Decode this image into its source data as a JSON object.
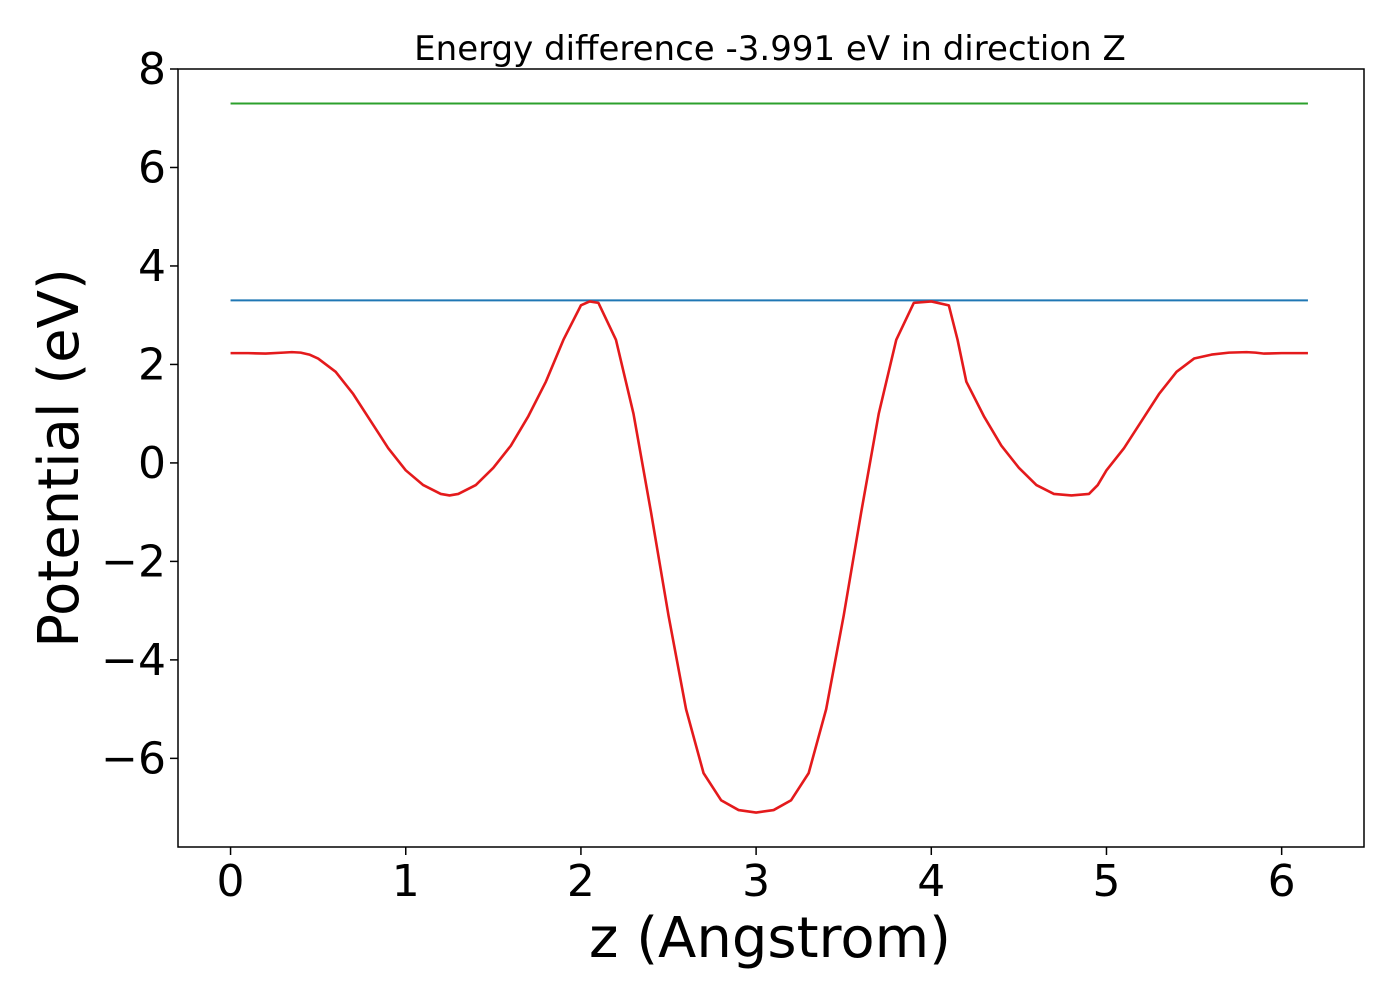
{
  "chart_data": {
    "type": "line",
    "title": "Energy difference -3.991 eV in direction Z",
    "xlabel": "z (Angstrom)",
    "ylabel": "Potential (eV)",
    "xlim": [
      -0.3,
      6.47
    ],
    "ylim": [
      -7.8,
      8.0
    ],
    "xticks": [
      0,
      1,
      2,
      3,
      4,
      5,
      6
    ],
    "xtick_labels": [
      "0",
      "1",
      "2",
      "3",
      "4",
      "5",
      "6"
    ],
    "yticks": [
      -6,
      -4,
      -2,
      0,
      2,
      4,
      6,
      8
    ],
    "ytick_labels": [
      "−6",
      "−4",
      "−2",
      "0",
      "2",
      "4",
      "6",
      "8"
    ],
    "grid": false,
    "legend": "none",
    "series": [
      {
        "color": "#2ca02c",
        "x": [
          0,
          6.15
        ],
        "y": [
          7.3,
          7.3
        ]
      },
      {
        "color": "#1f77b4",
        "x": [
          0,
          6.15
        ],
        "y": [
          3.3,
          3.3
        ]
      },
      {
        "color": "#e41a1c",
        "x": [
          0.0,
          0.1,
          0.2,
          0.3,
          0.35,
          0.4,
          0.45,
          0.5,
          0.6,
          0.7,
          0.8,
          0.9,
          1.0,
          1.1,
          1.2,
          1.25,
          1.3,
          1.4,
          1.5,
          1.6,
          1.7,
          1.8,
          1.9,
          2.0,
          2.05,
          2.1,
          2.2,
          2.3,
          2.4,
          2.5,
          2.6,
          2.7,
          2.8,
          2.9,
          3.0,
          3.1,
          3.2,
          3.3,
          3.4,
          3.5,
          3.6,
          3.7,
          3.8,
          3.9,
          4.0,
          4.1,
          4.15,
          4.2,
          4.3,
          4.4,
          4.5,
          4.6,
          4.7,
          4.8,
          4.9,
          4.95,
          5.0,
          5.1,
          5.2,
          5.3,
          5.4,
          5.5,
          5.6,
          5.7,
          5.8,
          5.85,
          5.9,
          6.0,
          6.1,
          6.15
        ],
        "y": [
          2.23,
          2.23,
          2.22,
          2.24,
          2.25,
          2.24,
          2.2,
          2.12,
          1.85,
          1.4,
          0.85,
          0.3,
          -0.15,
          -0.45,
          -0.63,
          -0.66,
          -0.63,
          -0.45,
          -0.1,
          0.35,
          0.95,
          1.65,
          2.5,
          3.2,
          3.28,
          3.25,
          2.5,
          1.0,
          -1.0,
          -3.1,
          -5.0,
          -6.3,
          -6.85,
          -7.05,
          -7.1,
          -7.05,
          -6.85,
          -6.3,
          -5.0,
          -3.1,
          -1.0,
          1.0,
          2.5,
          3.25,
          3.28,
          3.2,
          2.5,
          1.65,
          0.95,
          0.35,
          -0.1,
          -0.45,
          -0.63,
          -0.66,
          -0.63,
          -0.45,
          -0.15,
          0.3,
          0.85,
          1.4,
          1.85,
          2.12,
          2.2,
          2.24,
          2.25,
          2.24,
          2.22,
          2.23,
          2.23,
          2.23
        ]
      }
    ]
  }
}
